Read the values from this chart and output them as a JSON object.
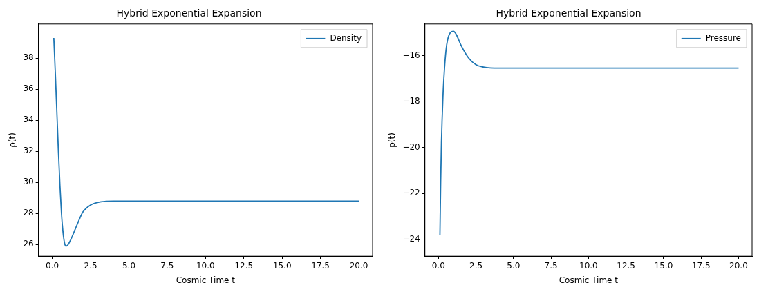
{
  "chart_data": [
    {
      "type": "line",
      "title": "Hybrid Exponential Expansion",
      "xlabel": "Cosmic Time t",
      "ylabel": "ρ(t)",
      "x": [
        0.1,
        0.2,
        0.3,
        0.4,
        0.5,
        0.6,
        0.7,
        0.8,
        0.9,
        1.0,
        1.2,
        1.5,
        1.8,
        2.0,
        2.5,
        3.0,
        3.5,
        4.0,
        5.0,
        20.0
      ],
      "series": [
        {
          "name": "Density",
          "color": "#1f77b4",
          "values": [
            39.3,
            37.0,
            34.5,
            32.0,
            29.8,
            28.0,
            26.8,
            26.1,
            25.9,
            25.95,
            26.3,
            27.0,
            27.7,
            28.1,
            28.55,
            28.72,
            28.78,
            28.8,
            28.8,
            28.8
          ]
        }
      ],
      "xlim": [
        -0.9,
        20.9
      ],
      "xticks": [
        {
          "value": 0,
          "label": "0.0"
        },
        {
          "value": 2.5,
          "label": "2.5"
        },
        {
          "value": 5,
          "label": "5.0"
        },
        {
          "value": 7.5,
          "label": "7.5"
        },
        {
          "value": 10,
          "label": "10.0"
        },
        {
          "value": 12.5,
          "label": "12.5"
        },
        {
          "value": 15,
          "label": "15.0"
        },
        {
          "value": 17.5,
          "label": "17.5"
        },
        {
          "value": 20,
          "label": "20.0"
        }
      ],
      "ylim": [
        25.25,
        40.2
      ],
      "yticks": [
        26,
        28,
        30,
        32,
        34,
        36,
        38
      ],
      "grid": false,
      "legend": "top right",
      "marker": "none",
      "line_style": "solid"
    },
    {
      "type": "line",
      "title": "Hybrid Exponential Expansion",
      "xlabel": "Cosmic Time t",
      "ylabel": "p(t)",
      "x": [
        0.1,
        0.15,
        0.2,
        0.3,
        0.4,
        0.5,
        0.6,
        0.8,
        1.0,
        1.2,
        1.5,
        2.0,
        2.5,
        3.0,
        4.0,
        20.0
      ],
      "series": [
        {
          "name": "Pressure",
          "color": "#1f77b4",
          "values": [
            -23.8,
            -21.5,
            -19.8,
            -17.8,
            -16.6,
            -15.8,
            -15.35,
            -15.0,
            -14.95,
            -15.1,
            -15.55,
            -16.1,
            -16.4,
            -16.5,
            -16.55,
            -16.55
          ]
        }
      ],
      "xlim": [
        -0.9,
        20.9
      ],
      "xticks": [
        {
          "value": 0,
          "label": "0.0"
        },
        {
          "value": 2.5,
          "label": "2.5"
        },
        {
          "value": 5,
          "label": "5.0"
        },
        {
          "value": 7.5,
          "label": "7.5"
        },
        {
          "value": 10,
          "label": "10.0"
        },
        {
          "value": 12.5,
          "label": "12.5"
        },
        {
          "value": 15,
          "label": "15.0"
        },
        {
          "value": 17.5,
          "label": "17.5"
        },
        {
          "value": 20,
          "label": "20.0"
        }
      ],
      "ylim": [
        -24.74,
        -14.63
      ],
      "yticks": [
        {
          "value": -24,
          "label": "−24"
        },
        {
          "value": -22,
          "label": "−22"
        },
        {
          "value": -20,
          "label": "−20"
        },
        {
          "value": -18,
          "label": "−18"
        },
        {
          "value": -16,
          "label": "−16"
        }
      ],
      "grid": false,
      "legend": "top right",
      "marker": "none",
      "line_style": "solid"
    }
  ]
}
